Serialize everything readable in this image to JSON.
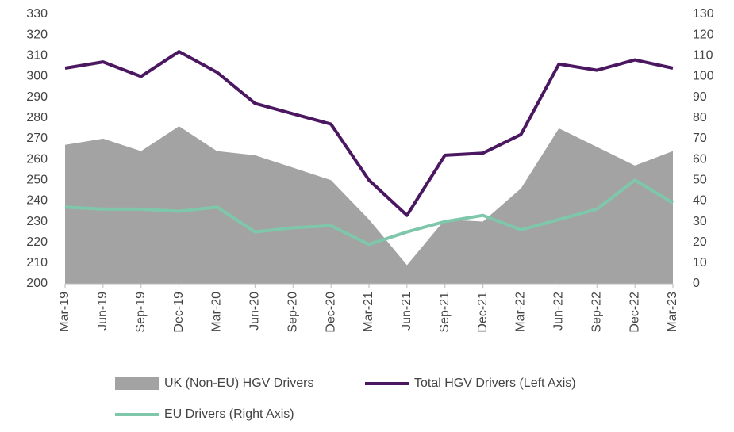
{
  "chart_data": {
    "type": "combo",
    "categories": [
      "Mar-19",
      "Jun-19",
      "Sep-19",
      "Dec-19",
      "Mar-20",
      "Jun-20",
      "Sep-20",
      "Dec-20",
      "Mar-21",
      "Jun-21",
      "Sep-21",
      "Dec-21",
      "Mar-22",
      "Jun-22",
      "Sep-22",
      "Dec-22",
      "Mar-23"
    ],
    "series": [
      {
        "name": "UK (Non-EU) HGV Drivers",
        "type": "area",
        "color": "#a3a3a3",
        "axis": "y",
        "values": [
          267,
          270,
          264,
          276,
          264,
          262,
          256,
          250,
          231,
          209,
          231,
          230,
          246,
          275,
          266,
          257,
          264
        ]
      },
      {
        "name": "Total HGV Drivers (Left Axis)",
        "type": "line",
        "color": "#4a1760",
        "axis": "y",
        "values": [
          304,
          307,
          300,
          312,
          302,
          287,
          282,
          277,
          250,
          233,
          262,
          263,
          272,
          306,
          303,
          308,
          304
        ]
      },
      {
        "name": "EU Drivers (Right Axis)",
        "type": "line",
        "color": "#7fc7ab",
        "axis": "y2",
        "values": [
          37,
          36,
          36,
          35,
          37,
          25,
          27,
          28,
          19,
          25,
          30,
          33,
          26,
          31,
          36,
          50,
          39
        ]
      }
    ],
    "ylim": [
      200,
      330
    ],
    "yticks": [
      200,
      210,
      220,
      230,
      240,
      250,
      260,
      270,
      280,
      290,
      300,
      310,
      320,
      330
    ],
    "y2lim": [
      0,
      130
    ],
    "y2ticks": [
      0,
      10,
      20,
      30,
      40,
      50,
      60,
      70,
      80,
      90,
      100,
      110,
      120,
      130
    ],
    "grid": false,
    "legend": "bottom"
  }
}
